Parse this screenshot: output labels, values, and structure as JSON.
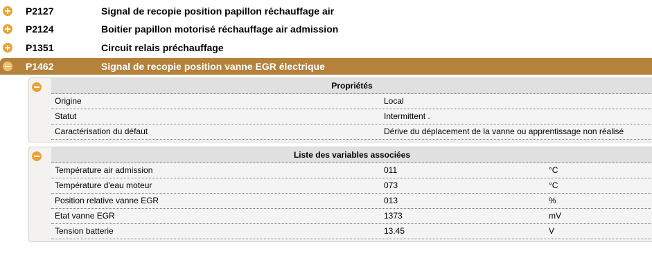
{
  "dtc_list": [
    {
      "code": "P2127",
      "title": "Signal de recopie position papillon réchauffage air",
      "expanded": false
    },
    {
      "code": "P2124",
      "title": "Boitier papillon motorisé réchauffage air admission",
      "expanded": false
    },
    {
      "code": "P1351",
      "title": "Circuit relais préchauffage",
      "expanded": false
    },
    {
      "code": "P1462",
      "title": "Signal de recopie position vanne EGR électrique",
      "expanded": true
    }
  ],
  "properties": {
    "header": "Propriétés",
    "rows": [
      {
        "label": "Origine",
        "value": "Local"
      },
      {
        "label": "Statut",
        "value": "Intermittent ."
      },
      {
        "label": "Caractérisation du défaut",
        "value": "Dérive du déplacement de la vanne ou apprentissage non réalisé"
      }
    ]
  },
  "variables": {
    "header": "Liste des variables associées",
    "rows": [
      {
        "label": "Température air admission",
        "value": "011",
        "unit": "°C"
      },
      {
        "label": "Température d'eau moteur",
        "value": "073",
        "unit": "°C"
      },
      {
        "label": "Position relative vanne EGR",
        "value": "013",
        "unit": "%"
      },
      {
        "label": "Etat vanne EGR",
        "value": "1373",
        "unit": "mV"
      },
      {
        "label": "Tension batterie",
        "value": "13.45",
        "unit": "V"
      }
    ]
  },
  "colors": {
    "active_row": "#b4823c",
    "toggle": "#e9a23a",
    "panel_bg": "#f4f2ee",
    "header_bg": "#e0e0e0"
  }
}
